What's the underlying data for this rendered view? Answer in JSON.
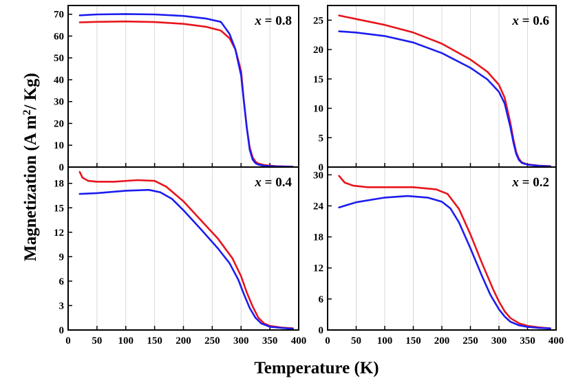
{
  "figure": {
    "xlabel": "Temperature (K)",
    "ylabel_main": "Magnetization (A m",
    "ylabel_sup": "2",
    "ylabel_tail": "/ Kg)"
  },
  "chart_data": [
    {
      "type": "line",
      "label": "x = 0.8",
      "xlim": [
        0,
        400
      ],
      "ylim": [
        0,
        74
      ],
      "xticks": [
        0,
        50,
        100,
        150,
        200,
        250,
        300,
        350,
        400
      ],
      "yticks": [
        0,
        10,
        20,
        30,
        40,
        50,
        60,
        70
      ],
      "grid": true,
      "series": [
        {
          "color": "#e8141c",
          "x": [
            20,
            50,
            100,
            150,
            200,
            240,
            265,
            280,
            290,
            300,
            305,
            310,
            315,
            320,
            325,
            330,
            340,
            360,
            390
          ],
          "y": [
            66.3,
            66.5,
            66.7,
            66.4,
            65.6,
            64.2,
            62.5,
            59.0,
            54.0,
            44.0,
            30.0,
            18.0,
            9.0,
            4.5,
            2.5,
            1.6,
            0.9,
            0.4,
            0.2
          ]
        },
        {
          "color": "#1c1cf0",
          "x": [
            20,
            50,
            100,
            150,
            200,
            240,
            265,
            280,
            290,
            300,
            305,
            310,
            315,
            320,
            325,
            330,
            340,
            360,
            390
          ],
          "y": [
            69.5,
            69.9,
            70.1,
            69.9,
            69.2,
            68.0,
            66.5,
            61.0,
            54.0,
            42.0,
            30.0,
            18.0,
            8.0,
            3.5,
            1.8,
            1.1,
            0.6,
            0.3,
            0.1
          ]
        }
      ]
    },
    {
      "type": "line",
      "label": "x = 0.6",
      "xlim": [
        0,
        400
      ],
      "ylim": [
        0,
        27.5
      ],
      "xticks": [
        0,
        50,
        100,
        150,
        200,
        250,
        300,
        350,
        400
      ],
      "yticks": [
        0,
        5,
        10,
        15,
        20,
        25
      ],
      "grid": true,
      "series": [
        {
          "color": "#e8141c",
          "x": [
            20,
            50,
            100,
            150,
            200,
            250,
            280,
            300,
            310,
            320,
            325,
            330,
            335,
            340,
            350,
            370,
            390
          ],
          "y": [
            25.8,
            25.2,
            24.2,
            22.9,
            21.0,
            18.3,
            16.2,
            14.0,
            11.8,
            7.5,
            4.8,
            2.6,
            1.4,
            0.8,
            0.45,
            0.25,
            0.15
          ]
        },
        {
          "color": "#1c1cf0",
          "x": [
            20,
            50,
            100,
            150,
            200,
            250,
            280,
            300,
            310,
            320,
            325,
            330,
            335,
            340,
            350,
            370,
            390
          ],
          "y": [
            23.1,
            22.9,
            22.3,
            21.2,
            19.4,
            16.9,
            14.9,
            12.8,
            10.8,
            6.8,
            4.3,
            2.3,
            1.2,
            0.7,
            0.4,
            0.2,
            0.1
          ]
        }
      ]
    },
    {
      "type": "line",
      "label": "x = 0.4",
      "xlim": [
        0,
        400
      ],
      "ylim": [
        0,
        20
      ],
      "xticks": [
        0,
        50,
        100,
        150,
        200,
        250,
        300,
        350,
        400
      ],
      "yticks": [
        0,
        3,
        6,
        9,
        12,
        15,
        18
      ],
      "grid": true,
      "series": [
        {
          "color": "#e8141c",
          "x": [
            20,
            25,
            35,
            50,
            80,
            120,
            150,
            170,
            200,
            230,
            260,
            285,
            300,
            310,
            320,
            330,
            340,
            350,
            370,
            390
          ],
          "y": [
            19.4,
            18.7,
            18.3,
            18.2,
            18.2,
            18.4,
            18.3,
            17.6,
            15.8,
            13.5,
            11.2,
            8.8,
            6.6,
            4.6,
            2.9,
            1.5,
            0.8,
            0.5,
            0.3,
            0.2
          ]
        },
        {
          "color": "#1c1cf0",
          "x": [
            20,
            50,
            100,
            140,
            160,
            180,
            200,
            230,
            260,
            280,
            295,
            305,
            315,
            325,
            335,
            350,
            370,
            390
          ],
          "y": [
            16.7,
            16.8,
            17.1,
            17.2,
            16.9,
            16.1,
            14.7,
            12.4,
            10.0,
            8.2,
            6.2,
            4.4,
            2.7,
            1.5,
            0.8,
            0.4,
            0.25,
            0.15
          ]
        }
      ]
    },
    {
      "type": "line",
      "label": "x = 0.2",
      "xlim": [
        0,
        400
      ],
      "ylim": [
        0,
        31.5
      ],
      "xticks": [
        0,
        50,
        100,
        150,
        200,
        250,
        300,
        350,
        400
      ],
      "yticks": [
        0,
        6,
        12,
        18,
        24,
        30
      ],
      "grid": true,
      "series": [
        {
          "color": "#e8141c",
          "x": [
            20,
            30,
            45,
            70,
            100,
            150,
            190,
            210,
            230,
            250,
            270,
            290,
            300,
            310,
            320,
            335,
            350,
            370,
            390
          ],
          "y": [
            29.8,
            28.5,
            27.9,
            27.6,
            27.6,
            27.6,
            27.2,
            26.3,
            23.4,
            18.5,
            13.0,
            7.8,
            5.5,
            3.6,
            2.3,
            1.3,
            0.8,
            0.5,
            0.3
          ]
        },
        {
          "color": "#1c1cf0",
          "x": [
            20,
            50,
            100,
            140,
            175,
            200,
            215,
            230,
            250,
            270,
            285,
            300,
            310,
            320,
            335,
            350,
            370,
            390
          ],
          "y": [
            23.7,
            24.7,
            25.6,
            25.9,
            25.6,
            24.8,
            23.5,
            20.8,
            15.8,
            10.5,
            6.8,
            4.0,
            2.6,
            1.6,
            0.9,
            0.6,
            0.4,
            0.3
          ]
        }
      ]
    }
  ]
}
